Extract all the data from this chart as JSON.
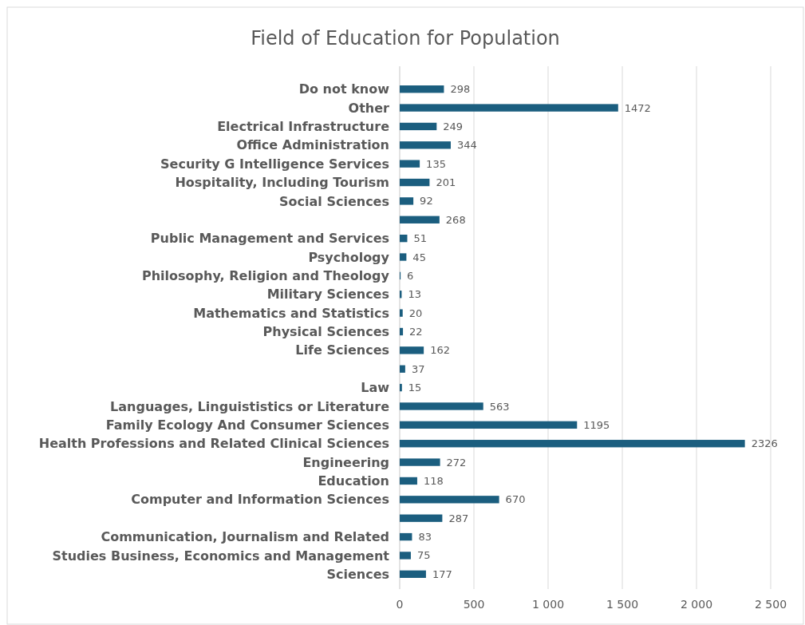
{
  "chart_data": {
    "type": "bar",
    "orientation": "horizontal",
    "title": "Field of Education for Population",
    "categories": [
      "Do not know",
      "Other",
      "Electrical Infrastructure",
      "Office Administration",
      "Security G Intelligence Services",
      "Hospitality, Including Tourism",
      "Social Sciences",
      null,
      "Public Management and Services",
      "Psychology",
      "Philosophy, Religion and Theology",
      "Military Sciences",
      "Mathematics and Statistics",
      "Physical Sciences",
      "Life Sciences",
      null,
      "Law",
      "Languages, Linguististics or Literature",
      "Family Ecology And Consumer Sciences",
      "Health Professions and Related Clinical Sciences",
      "Engineering",
      "Education",
      "Computer and Information Sciences",
      null,
      "Communication, Journalism and Related",
      "Studies Business, Economics and Management",
      "Sciences"
    ],
    "values": [
      298,
      1472,
      249,
      344,
      135,
      201,
      92,
      268,
      51,
      45,
      6,
      13,
      20,
      22,
      162,
      37,
      15,
      563,
      1195,
      2326,
      272,
      118,
      670,
      287,
      83,
      75,
      177
    ],
    "color": "#1b5e7f",
    "xlim": [
      0,
      2500
    ],
    "xticks": [
      0,
      500,
      {
        "value": 1000,
        "label": "1 000"
      },
      {
        "value": 1500,
        "label": "1 500"
      },
      {
        "value": 2000,
        "label": "2 000"
      },
      {
        "value": 2500,
        "label": "2 500"
      }
    ],
    "grid": "x",
    "data_labels": true
  }
}
